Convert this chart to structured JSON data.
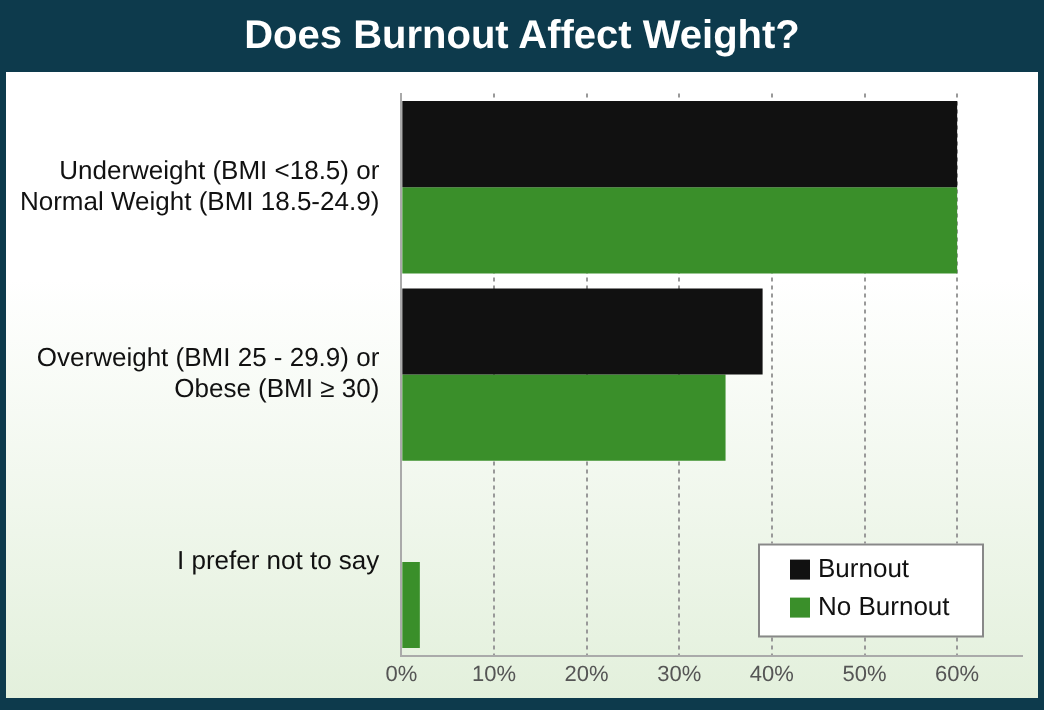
{
  "chart_data": {
    "type": "bar",
    "orientation": "horizontal",
    "title": "Does Burnout Affect Weight?",
    "categories": [
      "Underweight (BMI <18.5) or\nNormal Weight (BMI 18.5-24.9)",
      "Overweight (BMI 25 - 29.9) or\nObese (BMI ≥ 30)",
      "I prefer not to say"
    ],
    "series": [
      {
        "name": "Burnout",
        "color": "#111111",
        "values": [
          60,
          39,
          0
        ]
      },
      {
        "name": "No Burnout",
        "color": "#3a8f2a",
        "values": [
          60,
          35,
          2
        ]
      }
    ],
    "xlim": [
      0,
      67
    ],
    "xticks": [
      {
        "value": 0,
        "label": "0%"
      },
      {
        "value": 10,
        "label": "10%"
      },
      {
        "value": 20,
        "label": "20%"
      },
      {
        "value": 30,
        "label": "30%"
      },
      {
        "value": 40,
        "label": "40%"
      },
      {
        "value": 50,
        "label": "50%"
      },
      {
        "value": 60,
        "label": "60%"
      }
    ],
    "grid": "x",
    "legend": "bottom right"
  }
}
